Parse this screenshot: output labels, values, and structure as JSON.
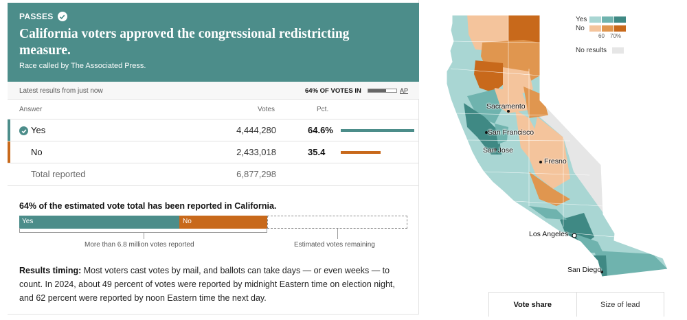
{
  "header": {
    "status": "PASSES",
    "headline": "California voters approved the congressional redistricting measure.",
    "called_by": "Race called by The Associated Press."
  },
  "status_bar": {
    "latest": "Latest results from just now",
    "pct_votes_in": "64% OF VOTES IN",
    "reported_fraction": 0.64,
    "source": "AP"
  },
  "table": {
    "columns": {
      "answer": "Answer",
      "votes": "Votes",
      "pct": "Pct."
    },
    "rows": [
      {
        "answer": "Yes",
        "votes": "4,444,280",
        "pct": "64.6%",
        "share": 0.646,
        "winner": true
      },
      {
        "answer": "No",
        "votes": "2,433,018",
        "pct": "35.4",
        "share": 0.354,
        "winner": false
      }
    ],
    "total": {
      "label": "Total reported",
      "votes": "6,877,298"
    }
  },
  "estimate": {
    "title": "64% of the estimated vote total has been reported in California.",
    "yes_label": "Yes",
    "no_label": "No",
    "yes_fraction": 0.413,
    "no_fraction": 0.226,
    "reported_caption": "More than 6.8 million votes reported",
    "remaining_caption": "Estimated votes remaining"
  },
  "timing": {
    "label": "Results timing:",
    "text": " Most voters cast votes by mail, and ballots can take days — or even weeks — to count. In 2024, about 49 percent of votes were reported by midnight Eastern time on election night, and 62 percent were reported by noon Eastern time the next day."
  },
  "legend": {
    "yes": "Yes",
    "no": "No",
    "tick_60": "60",
    "tick_70": "70%",
    "no_results": "No results",
    "colors": {
      "yes": [
        "#a9d6d3",
        "#6fb3ae",
        "#3f8984"
      ],
      "no": [
        "#f4c49c",
        "#e0964f",
        "#c8691b"
      ],
      "none": "#e6e6e6"
    }
  },
  "map": {
    "cities": [
      "Sacramento",
      "San Francisco",
      "San Jose",
      "Fresno",
      "Los Angeles",
      "San Diego"
    ]
  },
  "toggle": {
    "vote_share": "Vote share",
    "size_of_lead": "Size of lead"
  },
  "colors": {
    "yes": "#4c8d8a",
    "no": "#c8691b",
    "header_bg": "#4c8d8a"
  }
}
